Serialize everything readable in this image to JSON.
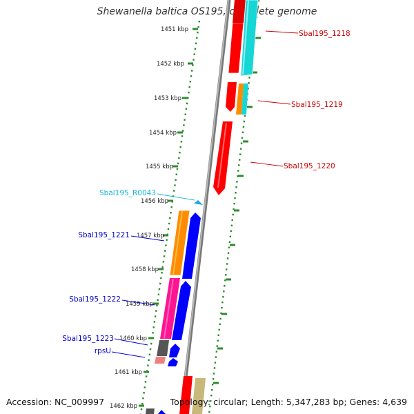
{
  "header": {
    "title": "Shewanella baltica OS195, complete genome"
  },
  "footer": {
    "accession": "Accession: NC_009997",
    "summary": "Topology: circular; Length: 5,347,283 bp; Genes: 4,639"
  },
  "colors": {
    "red": "#ff0000",
    "cyan": "#16d6d6",
    "orange": "#ff8c00",
    "blue": "#0000ff",
    "magenta": "#ff1493",
    "gray": "#555555",
    "pink": "#f08080",
    "khaki": "#c8b87a",
    "light_blue": "#1ea7e8",
    "red_label": "#cc0000",
    "blue_label": "#0000cc",
    "cyan_label": "#16b4d8",
    "dots": "#2e8b2e"
  },
  "ticks": [
    {
      "label": "1451 kbp"
    },
    {
      "label": "1452 kbp"
    },
    {
      "label": "1453 kbp"
    },
    {
      "label": "1454 kbp"
    },
    {
      "label": "1455 kbp"
    },
    {
      "label": "1456 kbp"
    },
    {
      "label": "1457 kbp"
    },
    {
      "label": "1458 kbp"
    },
    {
      "label": "1459 kbp"
    },
    {
      "label": "1460 kbp"
    },
    {
      "label": "1461 kbp"
    },
    {
      "label": "1462 kbp"
    }
  ],
  "genes": [
    {
      "label": "Sbal195_1218",
      "color": "red"
    },
    {
      "label": "Sbal195_1219",
      "color": "red"
    },
    {
      "label": "Sbal195_1220",
      "color": "red"
    },
    {
      "label": "Sbal195_R0043",
      "color": "cyan"
    },
    {
      "label": "Sbal195_1221",
      "color": "blue"
    },
    {
      "label": "Sbal195_1222",
      "color": "blue"
    },
    {
      "label": "Sbal195_1223",
      "color": "blue"
    },
    {
      "label": "rpsU",
      "color": "blue"
    }
  ]
}
